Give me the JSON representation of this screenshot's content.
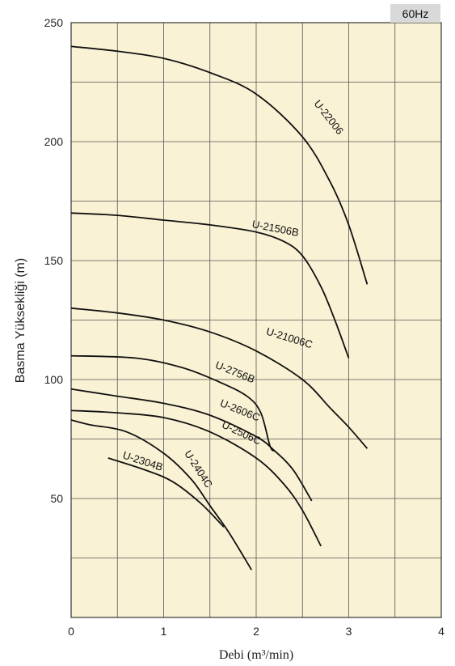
{
  "chart_data": {
    "type": "line",
    "badge": "60Hz",
    "xlabel": "Debi (m³/min)",
    "ylabel": "Basma Yüksekliği (m)",
    "xlim": [
      0,
      4
    ],
    "ylim": [
      0,
      250
    ],
    "x_ticks": [
      "0",
      "1",
      "2",
      "3",
      "4"
    ],
    "y_ticks": [
      {
        "value": 50,
        "label": "50"
      },
      {
        "value": 100,
        "label": "100"
      },
      {
        "value": 150,
        "label": "150"
      },
      {
        "value": 200,
        "label": "200"
      },
      {
        "value": 250,
        "label": "250"
      }
    ],
    "grid": true,
    "background": "#f9f2d4",
    "series": [
      {
        "name": "U-22006",
        "points": [
          [
            0,
            240
          ],
          [
            0.5,
            238
          ],
          [
            1,
            235
          ],
          [
            1.5,
            229
          ],
          [
            2,
            220
          ],
          [
            2.5,
            202
          ],
          [
            2.8,
            183
          ],
          [
            3,
            165
          ],
          [
            3.2,
            140
          ]
        ],
        "label_pos": [
          2.62,
          216
        ],
        "label_angle": 52
      },
      {
        "name": "U-21506B",
        "points": [
          [
            0,
            170
          ],
          [
            0.5,
            169
          ],
          [
            1,
            167
          ],
          [
            1.5,
            165
          ],
          [
            2,
            162
          ],
          [
            2.3,
            158
          ],
          [
            2.5,
            152
          ],
          [
            2.7,
            139
          ],
          [
            2.85,
            125
          ],
          [
            3,
            109
          ]
        ],
        "label_pos": [
          1.95,
          164
        ],
        "label_angle": 11
      },
      {
        "name": "U-21006C",
        "points": [
          [
            0,
            130
          ],
          [
            0.5,
            128
          ],
          [
            1,
            125
          ],
          [
            1.5,
            120
          ],
          [
            2,
            112
          ],
          [
            2.5,
            100
          ],
          [
            2.8,
            88
          ],
          [
            3,
            80
          ],
          [
            3.2,
            71
          ]
        ],
        "label_pos": [
          2.1,
          119
        ],
        "label_angle": 17
      },
      {
        "name": "U-2756B",
        "points": [
          [
            0,
            110
          ],
          [
            0.7,
            109
          ],
          [
            1.2,
            105
          ],
          [
            1.6,
            99
          ],
          [
            1.9,
            93
          ],
          [
            2.05,
            86
          ],
          [
            2.15,
            72
          ],
          [
            2.2,
            70
          ]
        ],
        "label_pos": [
          1.55,
          105
        ],
        "label_angle": 22
      },
      {
        "name": "U-2606C",
        "points": [
          [
            0,
            96
          ],
          [
            0.5,
            93
          ],
          [
            1,
            90
          ],
          [
            1.5,
            85
          ],
          [
            2,
            76
          ],
          [
            2.2,
            70
          ],
          [
            2.4,
            62
          ],
          [
            2.6,
            49
          ]
        ],
        "label_pos": [
          1.6,
          89
        ],
        "label_angle": 22
      },
      {
        "name": "U-2506C",
        "points": [
          [
            0,
            87
          ],
          [
            0.5,
            86
          ],
          [
            1,
            84
          ],
          [
            1.5,
            78
          ],
          [
            2,
            67
          ],
          [
            2.3,
            56
          ],
          [
            2.5,
            45
          ],
          [
            2.7,
            30
          ]
        ],
        "label_pos": [
          1.62,
          80
        ],
        "label_angle": 25
      },
      {
        "name": "U-2404C",
        "points": [
          [
            0,
            83
          ],
          [
            0.2,
            81
          ],
          [
            0.6,
            78
          ],
          [
            1,
            69
          ],
          [
            1.3,
            58
          ],
          [
            1.5,
            47
          ],
          [
            1.7,
            36
          ],
          [
            1.95,
            20
          ]
        ],
        "label_pos": [
          1.22,
          69
        ],
        "label_angle": 57
      },
      {
        "name": "U-2304B",
        "points": [
          [
            0.4,
            67
          ],
          [
            0.8,
            62
          ],
          [
            1.1,
            57
          ],
          [
            1.4,
            48
          ],
          [
            1.65,
            38
          ]
        ],
        "label_pos": [
          0.55,
          67
        ],
        "label_angle": 18
      }
    ]
  }
}
